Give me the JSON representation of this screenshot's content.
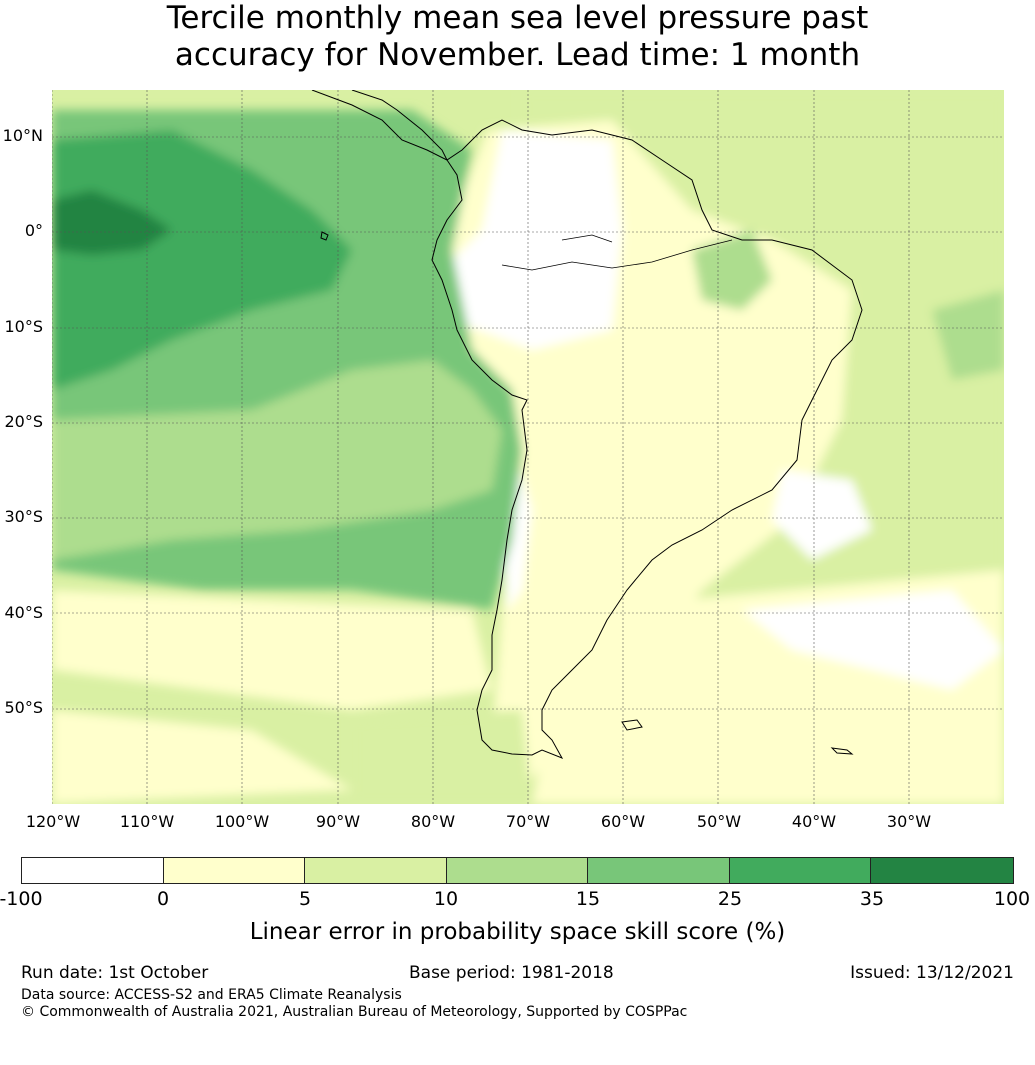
{
  "title_line1": "Tercile monthly mean sea level pressure past",
  "title_line2": "accuracy for November. Lead time: 1 month",
  "map": {
    "lat_labels": [
      "10°N",
      "0°",
      "10°S",
      "20°S",
      "30°S",
      "40°S",
      "50°S"
    ],
    "lon_labels": [
      "120°W",
      "110°W",
      "100°W",
      "90°W",
      "80°W",
      "70°W",
      "60°W",
      "50°W",
      "40°W",
      "30°W"
    ],
    "extent": {
      "lon_min": -120,
      "lon_max": -20,
      "lat_min": -60,
      "lat_max": 15
    }
  },
  "colorbar": {
    "boundaries": [
      "-100",
      "0",
      "5",
      "10",
      "15",
      "25",
      "35",
      "100"
    ],
    "colors": [
      "#ffffff",
      "#ffffcc",
      "#d9f0a3",
      "#addd8e",
      "#78c679",
      "#41ab5d",
      "#238443"
    ],
    "label": "Linear error in probability space skill score (%)"
  },
  "footer": {
    "run_date": "Run date: 1st October",
    "base_period": "Base period: 1981-2018",
    "issued": "Issued: 13/12/2021",
    "data_source": "Data source: ACCESS-S2 and ERA5 Climate Reanalysis",
    "copyright": "© Commonwealth of Australia 2021, Australian Bureau of Meteorology, Supported by COSPPac"
  }
}
